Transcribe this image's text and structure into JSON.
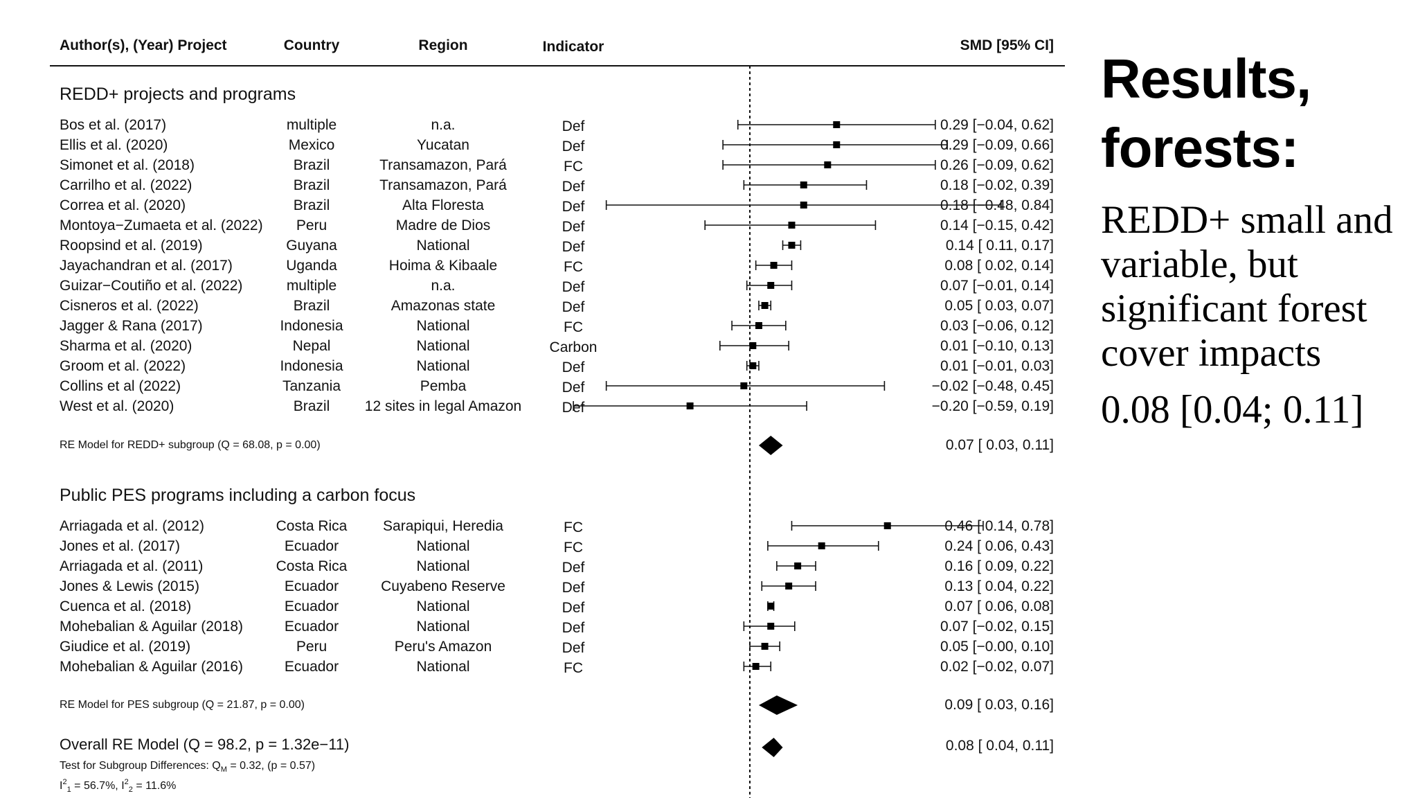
{
  "slide": {
    "title_line1": "Results,",
    "title_line2": "forests:",
    "body_text": "REDD+ small and variable, but significant forest cover impacts",
    "summary_value": "0.08 [0.04; 0.11]"
  },
  "chart_data": {
    "type": "forest",
    "columns": {
      "author": "Author(s), (Year) Project",
      "country": "Country",
      "region": "Region",
      "indicator": "Indicator",
      "estimate": "SMD [95% CI]"
    },
    "xlim": [
      -0.65,
      0.9
    ],
    "reference_line": 0,
    "groups": [
      {
        "label": "REDD+ projects and programs",
        "studies": [
          {
            "author": "Bos et al. (2017)",
            "country": "multiple",
            "region": "n.a.",
            "indicator": "Def",
            "est": 0.29,
            "lo": -0.04,
            "hi": 0.62,
            "text": "0.29 [−0.04, 0.62]"
          },
          {
            "author": "Ellis et al. (2020)",
            "country": "Mexico",
            "region": "Yucatan",
            "indicator": "Def",
            "est": 0.29,
            "lo": -0.09,
            "hi": 0.66,
            "text": "0.29 [−0.09, 0.66]"
          },
          {
            "author": "Simonet et al. (2018)",
            "country": "Brazil",
            "region": "Transamazon, Pará",
            "indicator": "FC",
            "est": 0.26,
            "lo": -0.09,
            "hi": 0.62,
            "text": "0.26 [−0.09, 0.62]"
          },
          {
            "author": "Carrilho et al. (2022)",
            "country": "Brazil",
            "region": "Transamazon, Pará",
            "indicator": "Def",
            "est": 0.18,
            "lo": -0.02,
            "hi": 0.39,
            "text": "0.18 [−0.02, 0.39]"
          },
          {
            "author": "Correa et al. (2020)",
            "country": "Brazil",
            "region": "Alta Floresta",
            "indicator": "Def",
            "est": 0.18,
            "lo": -0.48,
            "hi": 0.84,
            "text": "0.18 [−0.48, 0.84]"
          },
          {
            "author": "Montoya−Zumaeta et al. (2022)",
            "country": "Peru",
            "region": "Madre de Dios",
            "indicator": "Def",
            "est": 0.14,
            "lo": -0.15,
            "hi": 0.42,
            "text": "0.14 [−0.15, 0.42]"
          },
          {
            "author": "Roopsind et al. (2019)",
            "country": "Guyana",
            "region": "National",
            "indicator": "Def",
            "est": 0.14,
            "lo": 0.11,
            "hi": 0.17,
            "text": "0.14 [ 0.11, 0.17]"
          },
          {
            "author": "Jayachandran et al. (2017)",
            "country": "Uganda",
            "region": "Hoima & Kibaale",
            "indicator": "FC",
            "est": 0.08,
            "lo": 0.02,
            "hi": 0.14,
            "text": "0.08 [ 0.02, 0.14]"
          },
          {
            "author": "Guizar−Coutiño et al. (2022)",
            "country": "multiple",
            "region": "n.a.",
            "indicator": "Def",
            "est": 0.07,
            "lo": -0.01,
            "hi": 0.14,
            "text": "0.07 [−0.01, 0.14]"
          },
          {
            "author": "Cisneros et al. (2022)",
            "country": "Brazil",
            "region": "Amazonas state",
            "indicator": "Def",
            "est": 0.05,
            "lo": 0.03,
            "hi": 0.07,
            "text": "0.05 [ 0.03, 0.07]"
          },
          {
            "author": "Jagger & Rana (2017)",
            "country": "Indonesia",
            "region": "National",
            "indicator": "FC",
            "est": 0.03,
            "lo": -0.06,
            "hi": 0.12,
            "text": "0.03 [−0.06, 0.12]"
          },
          {
            "author": "Sharma et al. (2020)",
            "country": "Nepal",
            "region": "National",
            "indicator": "Carbon",
            "est": 0.01,
            "lo": -0.1,
            "hi": 0.13,
            "text": "0.01 [−0.10, 0.13]"
          },
          {
            "author": "Groom et al. (2022)",
            "country": "Indonesia",
            "region": "National",
            "indicator": "Def",
            "est": 0.01,
            "lo": -0.01,
            "hi": 0.03,
            "text": "0.01 [−0.01, 0.03]"
          },
          {
            "author": "Collins et al (2022)",
            "country": "Tanzania",
            "region": "Pemba",
            "indicator": "Def",
            "est": -0.02,
            "lo": -0.48,
            "hi": 0.45,
            "text": "−0.02 [−0.48, 0.45]"
          },
          {
            "author": "West et al. (2020)",
            "country": "Brazil",
            "region": "12 sites in legal Amazon",
            "indicator": "Def",
            "est": -0.2,
            "lo": -0.59,
            "hi": 0.19,
            "text": "−0.20 [−0.59, 0.19]"
          }
        ],
        "summary": {
          "label": "RE Model for REDD+ subgroup (Q = 68.08, p = 0.00)",
          "est": 0.07,
          "lo": 0.03,
          "hi": 0.11,
          "text": "0.07 [ 0.03, 0.11]"
        }
      },
      {
        "label": "Public PES programs including a carbon focus",
        "studies": [
          {
            "author": "Arriagada et al. (2012)",
            "country": "Costa Rica",
            "region": "Sarapiqui, Heredia",
            "indicator": "FC",
            "est": 0.46,
            "lo": 0.14,
            "hi": 0.78,
            "text": "0.46 [ 0.14, 0.78]"
          },
          {
            "author": "Jones et al. (2017)",
            "country": "Ecuador",
            "region": "National",
            "indicator": "FC",
            "est": 0.24,
            "lo": 0.06,
            "hi": 0.43,
            "text": "0.24 [ 0.06, 0.43]"
          },
          {
            "author": "Arriagada et al. (2011)",
            "country": "Costa Rica",
            "region": "National",
            "indicator": "Def",
            "est": 0.16,
            "lo": 0.09,
            "hi": 0.22,
            "text": "0.16 [ 0.09, 0.22]"
          },
          {
            "author": "Jones & Lewis (2015)",
            "country": "Ecuador",
            "region": "Cuyabeno Reserve",
            "indicator": "Def",
            "est": 0.13,
            "lo": 0.04,
            "hi": 0.22,
            "text": "0.13 [ 0.04, 0.22]"
          },
          {
            "author": "Cuenca et al. (2018)",
            "country": "Ecuador",
            "region": "National",
            "indicator": "Def",
            "est": 0.07,
            "lo": 0.06,
            "hi": 0.08,
            "text": "0.07 [ 0.06, 0.08]"
          },
          {
            "author": "Mohebalian & Aguilar (2018)",
            "country": "Ecuador",
            "region": "National",
            "indicator": "Def",
            "est": 0.07,
            "lo": -0.02,
            "hi": 0.15,
            "text": "0.07 [−0.02, 0.15]"
          },
          {
            "author": "Giudice et al. (2019)",
            "country": "Peru",
            "region": "Peru's Amazon",
            "indicator": "Def",
            "est": 0.05,
            "lo": -0.0,
            "hi": 0.1,
            "text": "0.05 [−0.00, 0.10]"
          },
          {
            "author": "Mohebalian & Aguilar (2016)",
            "country": "Ecuador",
            "region": "National",
            "indicator": "FC",
            "est": 0.02,
            "lo": -0.02,
            "hi": 0.07,
            "text": "0.02 [−0.02, 0.07]"
          }
        ],
        "summary": {
          "label": "RE Model for PES subgroup (Q = 21.87, p = 0.00)",
          "est": 0.09,
          "lo": 0.03,
          "hi": 0.16,
          "text": "0.09 [ 0.03, 0.16]"
        }
      }
    ],
    "overall": {
      "label": "Overall RE Model (Q = 98.2, p = 1.32e−11)",
      "est": 0.08,
      "lo": 0.04,
      "hi": 0.11,
      "text": "0.08 [ 0.04, 0.11]"
    },
    "footnote_subgroup": {
      "prefix": "Test for Subgroup Differences: Q",
      "sub": "M",
      "suffix": " = 0.32, (p = 0.57)"
    },
    "footnote_i2": {
      "i1_label": "I",
      "i1_sup": "2",
      "i1_sub": "1",
      "i1_value": " = 56.7%, ",
      "i2_label": "I",
      "i2_sup": "2",
      "i2_sub": "2",
      "i2_value": " = 11.6%"
    }
  }
}
